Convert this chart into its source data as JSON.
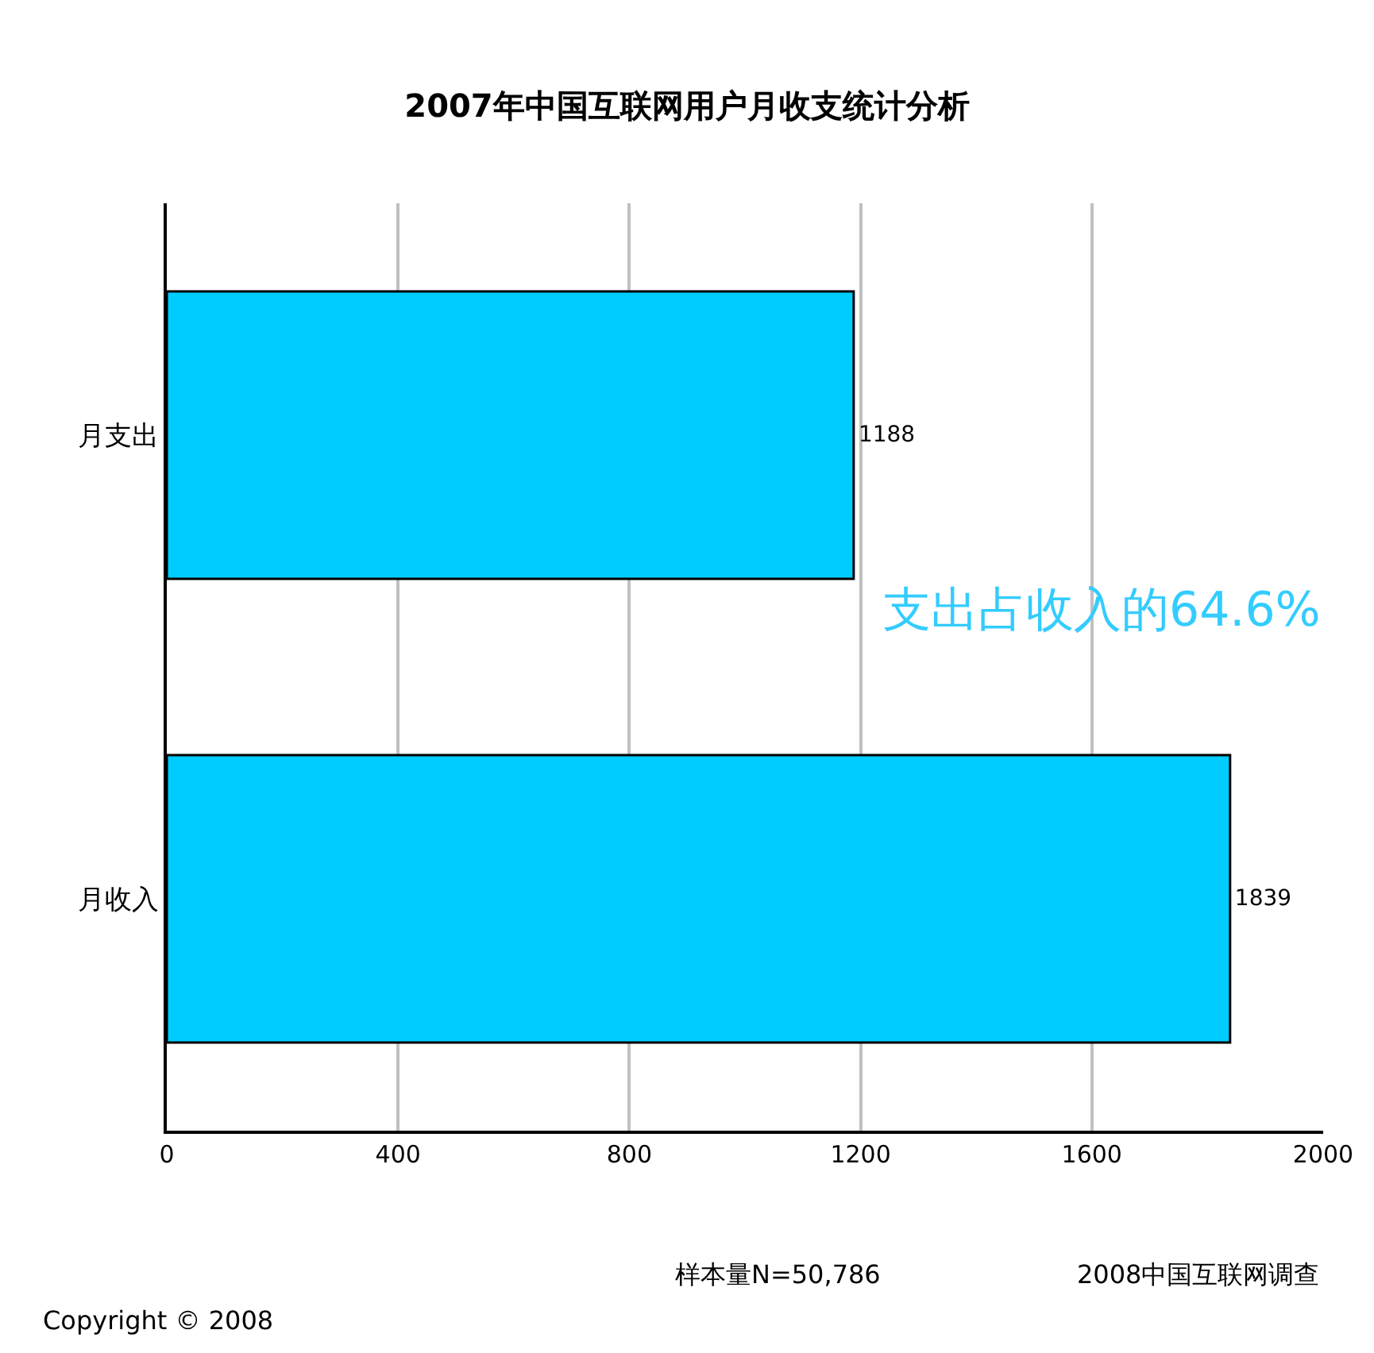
{
  "chart_data": {
    "type": "bar",
    "orientation": "horizontal",
    "title": "2007年中国互联网用户月收支统计分析",
    "categories": [
      "月支出",
      "月收入"
    ],
    "values": [
      1188,
      1839
    ],
    "color": "#00ccff",
    "data_labels": true,
    "xlim": [
      0,
      2000
    ],
    "xticks": [
      0,
      400,
      800,
      1200,
      1600,
      2000
    ],
    "grid": "x",
    "annotations": [
      "支出占收入的64.6%",
      "样本量N=50,786",
      "2008中国互联网调查",
      "Copyright © 2008"
    ]
  }
}
